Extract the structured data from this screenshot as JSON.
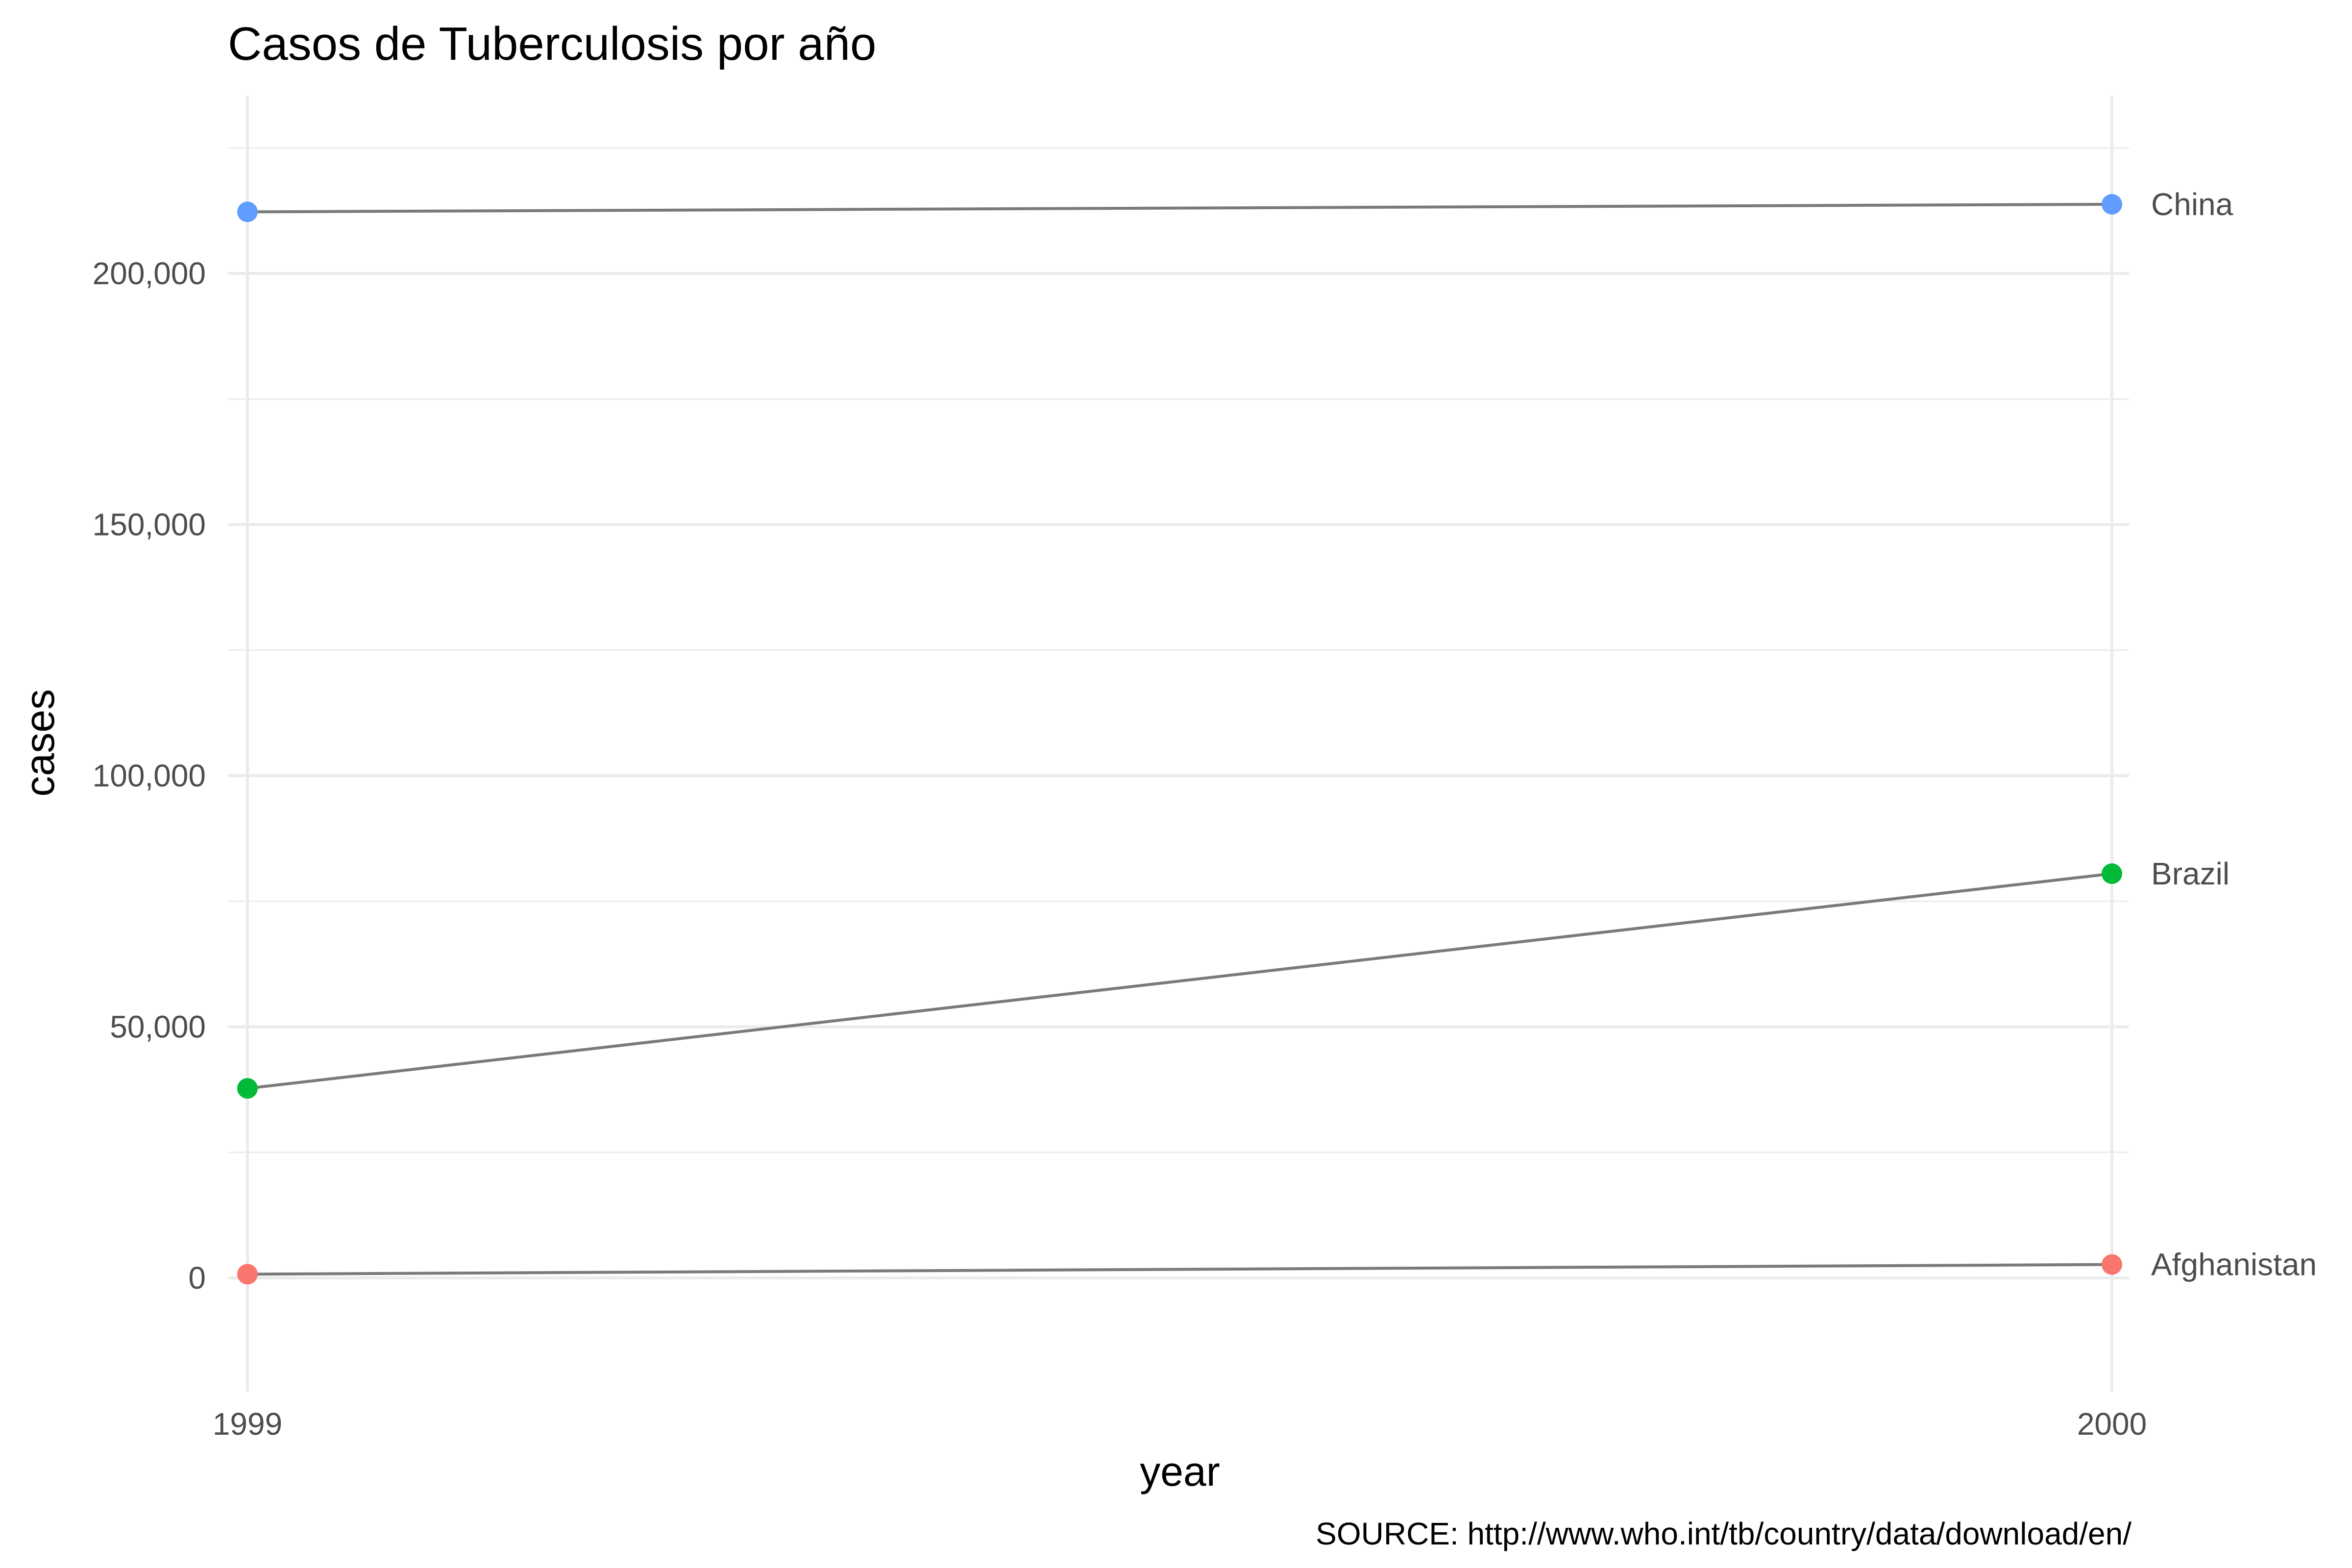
{
  "chart_data": {
    "type": "line",
    "title": "Casos de Tuberculosis por año",
    "xlabel": "year",
    "ylabel": "cases",
    "caption": "SOURCE: http://www.who.int/tb/country/data/download/en/",
    "x": [
      1999,
      2000
    ],
    "x_ticks": [
      "1999",
      "2000"
    ],
    "xlim": [
      1999,
      2000
    ],
    "ylim": [
      -20000,
      235000
    ],
    "y_ticks": [
      0,
      50000,
      100000,
      150000,
      200000
    ],
    "y_tick_labels": [
      "0",
      "50,000",
      "100,000",
      "150,000",
      "200,000"
    ],
    "grid": true,
    "legend": "none",
    "line_color": "#7a7a7a",
    "series": [
      {
        "name": "Afghanistan",
        "values": [
          745,
          2666
        ],
        "color": "#F8766D"
      },
      {
        "name": "Brazil",
        "values": [
          37737,
          80488
        ],
        "color": "#00BA38"
      },
      {
        "name": "China",
        "values": [
          212258,
          213766
        ],
        "color": "#619CFF"
      }
    ]
  }
}
